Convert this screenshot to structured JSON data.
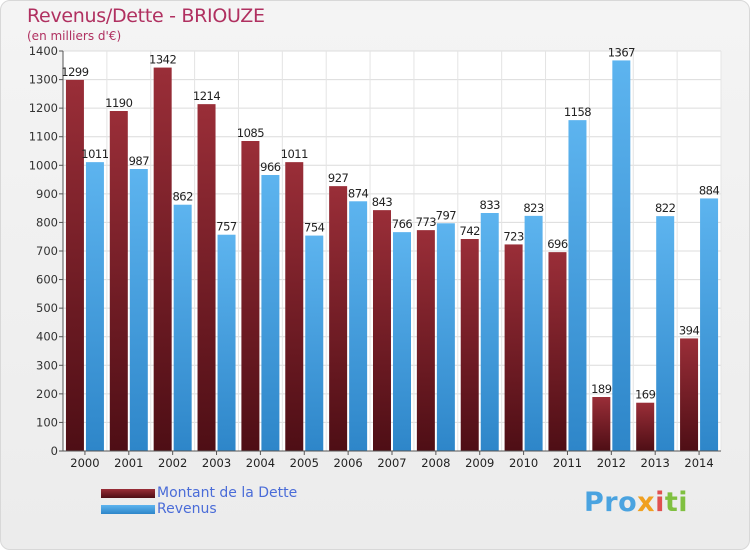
{
  "chart_data": {
    "type": "bar",
    "title": "Revenus/Dette - BRIOUZE",
    "subtitle": "(en milliers d'€)",
    "categories": [
      "2000",
      "2001",
      "2002",
      "2003",
      "2004",
      "2005",
      "2006",
      "2007",
      "2008",
      "2009",
      "2010",
      "2011",
      "2012",
      "2013",
      "2014"
    ],
    "series": [
      {
        "name": "Montant de la Dette",
        "color": "#7a1f2a",
        "values": [
          1299,
          1190,
          1342,
          1214,
          1085,
          1011,
          927,
          843,
          773,
          742,
          723,
          696,
          189,
          169,
          394
        ]
      },
      {
        "name": "Revenus",
        "color": "#4aa3e3",
        "values": [
          1011,
          987,
          862,
          757,
          966,
          754,
          874,
          766,
          797,
          833,
          823,
          1158,
          1367,
          822,
          884
        ]
      }
    ],
    "yticks": [
      0,
      100,
      200,
      300,
      400,
      500,
      600,
      700,
      800,
      900,
      1000,
      1100,
      1200,
      1300,
      1400
    ],
    "ylim": [
      0,
      1400
    ],
    "grid": true,
    "legend_position": "bottom-left"
  },
  "logo": {
    "text": "Proxiti"
  }
}
